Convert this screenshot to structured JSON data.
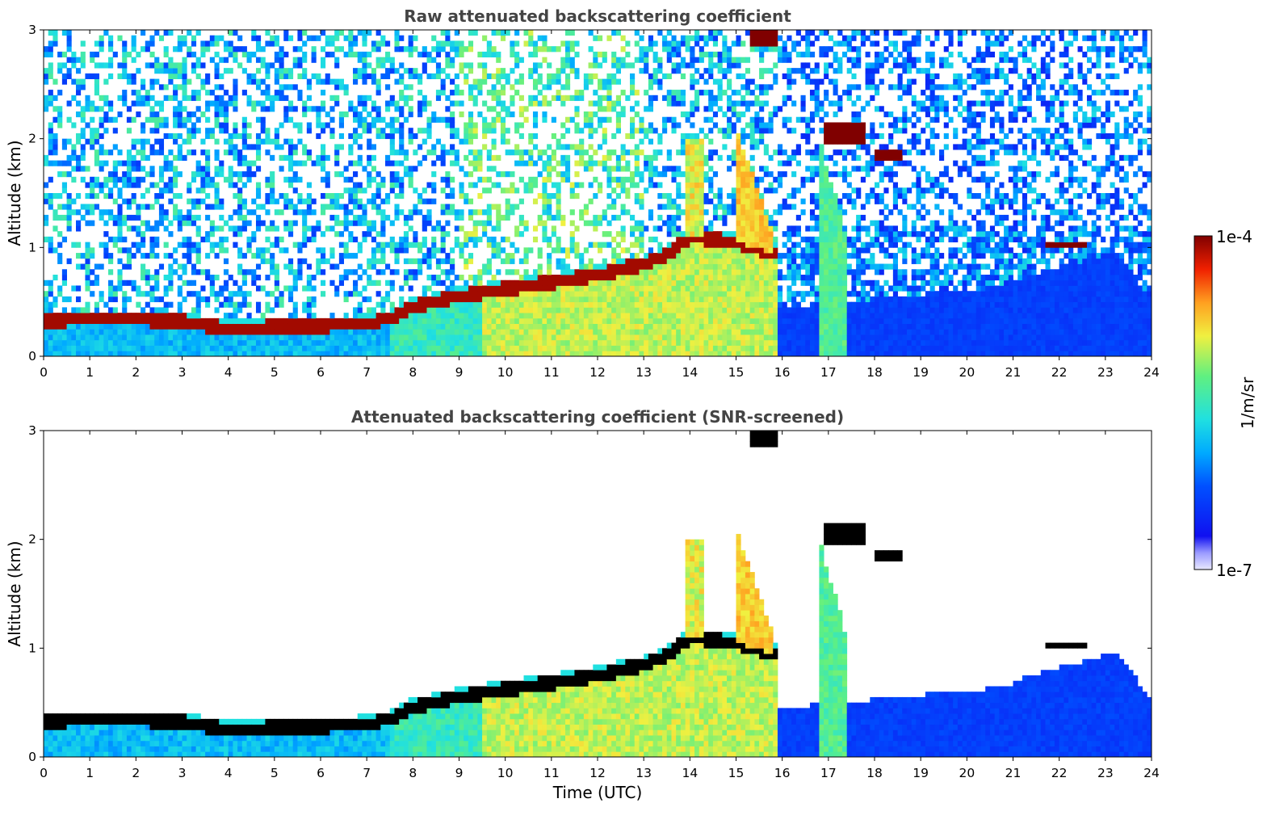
{
  "chart_data": [
    {
      "type": "heatmap",
      "title": "Raw attenuated backscattering coefficient",
      "xlabel": "",
      "ylabel": "Altitude (km)",
      "xlim": [
        0,
        24
      ],
      "ylim": [
        0,
        3
      ],
      "xticks": [
        "0",
        "1",
        "2",
        "3",
        "4",
        "5",
        "6",
        "7",
        "8",
        "9",
        "10",
        "11",
        "12",
        "13",
        "14",
        "15",
        "16",
        "17",
        "18",
        "19",
        "20",
        "21",
        "22",
        "23",
        "24"
      ],
      "yticks": [
        "0",
        "1",
        "2",
        "3"
      ],
      "screened": false,
      "boundary_layer_top_km": {
        "x": [
          0,
          1,
          2,
          3,
          4,
          5,
          6,
          7,
          7.5,
          8,
          9,
          10,
          11,
          12,
          13,
          13.5,
          14,
          15,
          15.8
        ],
        "y": [
          0.33,
          0.34,
          0.34,
          0.32,
          0.25,
          0.27,
          0.28,
          0.3,
          0.35,
          0.46,
          0.55,
          0.62,
          0.68,
          0.75,
          0.85,
          0.93,
          1.1,
          1.05,
          0.95
        ]
      },
      "clouds": [
        {
          "x": [
            15.3,
            15.9
          ],
          "y": [
            2.85,
            3.0
          ]
        },
        {
          "x": [
            16.9,
            17.8
          ],
          "y": [
            1.95,
            2.15
          ]
        },
        {
          "x": [
            18.0,
            18.6
          ],
          "y": [
            1.8,
            1.9
          ]
        },
        {
          "x": [
            21.7,
            22.6
          ],
          "y": [
            0.98,
            1.05
          ]
        }
      ]
    },
    {
      "type": "heatmap",
      "title": "Attenuated backscattering coefficient (SNR-screened)",
      "xlabel": "Time (UTC)",
      "ylabel": "Altitude (km)",
      "xlim": [
        0,
        24
      ],
      "ylim": [
        0,
        3
      ],
      "xticks": [
        "0",
        "1",
        "2",
        "3",
        "4",
        "5",
        "6",
        "7",
        "8",
        "9",
        "10",
        "11",
        "12",
        "13",
        "14",
        "15",
        "16",
        "17",
        "18",
        "19",
        "20",
        "21",
        "22",
        "23",
        "24"
      ],
      "yticks": [
        "0",
        "1",
        "2",
        "3"
      ],
      "screened": true
    }
  ],
  "colorbar": {
    "label": "1/m/sr",
    "max_label": "1e-4",
    "min_label": "1e-7",
    "scale": "log",
    "range": [
      1e-07,
      0.0001
    ]
  }
}
